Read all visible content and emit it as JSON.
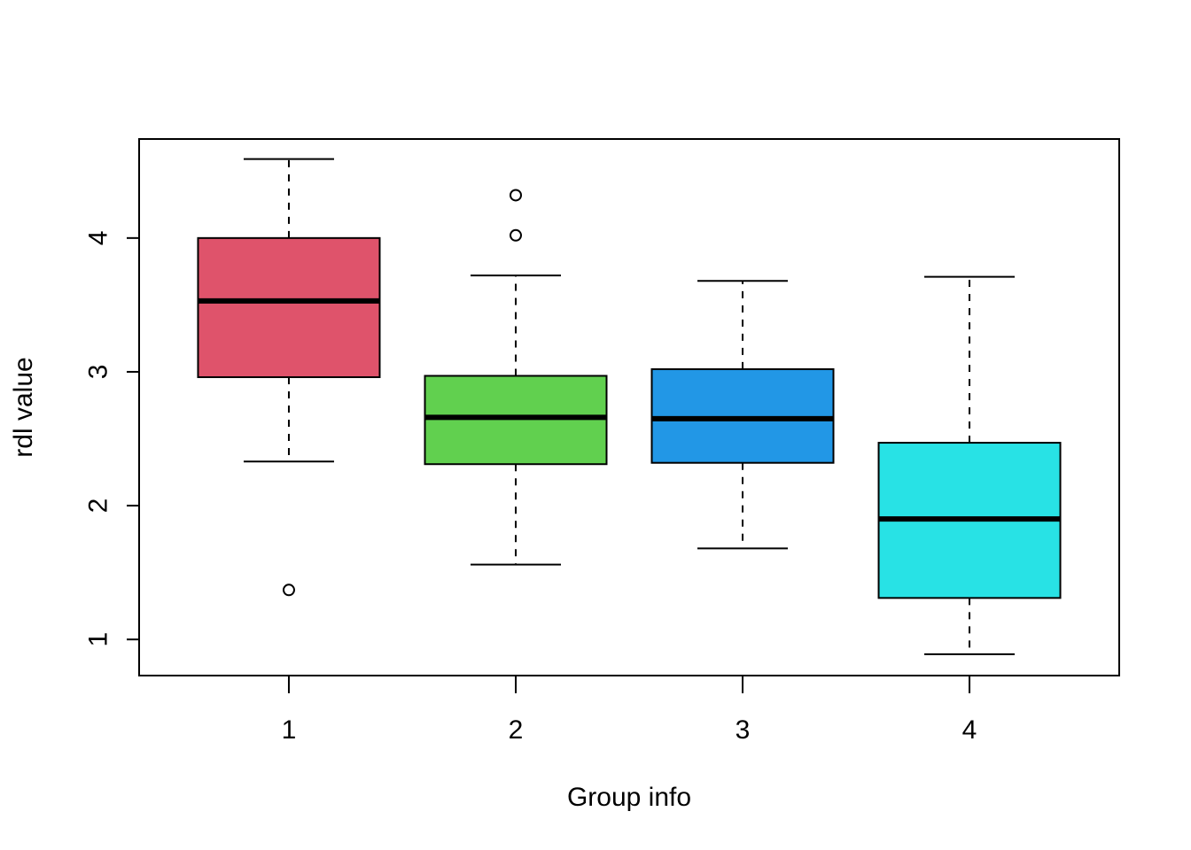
{
  "chart_data": {
    "type": "boxplot",
    "title": "",
    "xlabel": "Group info",
    "ylabel": "rdl value",
    "categories": [
      "1",
      "2",
      "3",
      "4"
    ],
    "y_ticks": [
      1,
      2,
      3,
      4
    ],
    "ylim": [
      0.73,
      4.74
    ],
    "grid": false,
    "legend": "none",
    "boxes": [
      {
        "name": "1",
        "color": "#DF536B",
        "whisker_low": 2.33,
        "q1": 2.96,
        "median": 3.53,
        "q3": 4.0,
        "whisker_high": 4.59,
        "outliers": [
          1.37
        ]
      },
      {
        "name": "2",
        "color": "#61D04F",
        "whisker_low": 1.56,
        "q1": 2.31,
        "median": 2.66,
        "q3": 2.97,
        "whisker_high": 3.72,
        "outliers": [
          4.02,
          4.32
        ]
      },
      {
        "name": "3",
        "color": "#2297E6",
        "whisker_low": 1.68,
        "q1": 2.32,
        "median": 2.65,
        "q3": 3.02,
        "whisker_high": 3.68,
        "outliers": []
      },
      {
        "name": "4",
        "color": "#28E2E5",
        "whisker_low": 0.89,
        "q1": 1.31,
        "median": 1.9,
        "q3": 2.47,
        "whisker_high": 3.71,
        "outliers": []
      }
    ]
  }
}
